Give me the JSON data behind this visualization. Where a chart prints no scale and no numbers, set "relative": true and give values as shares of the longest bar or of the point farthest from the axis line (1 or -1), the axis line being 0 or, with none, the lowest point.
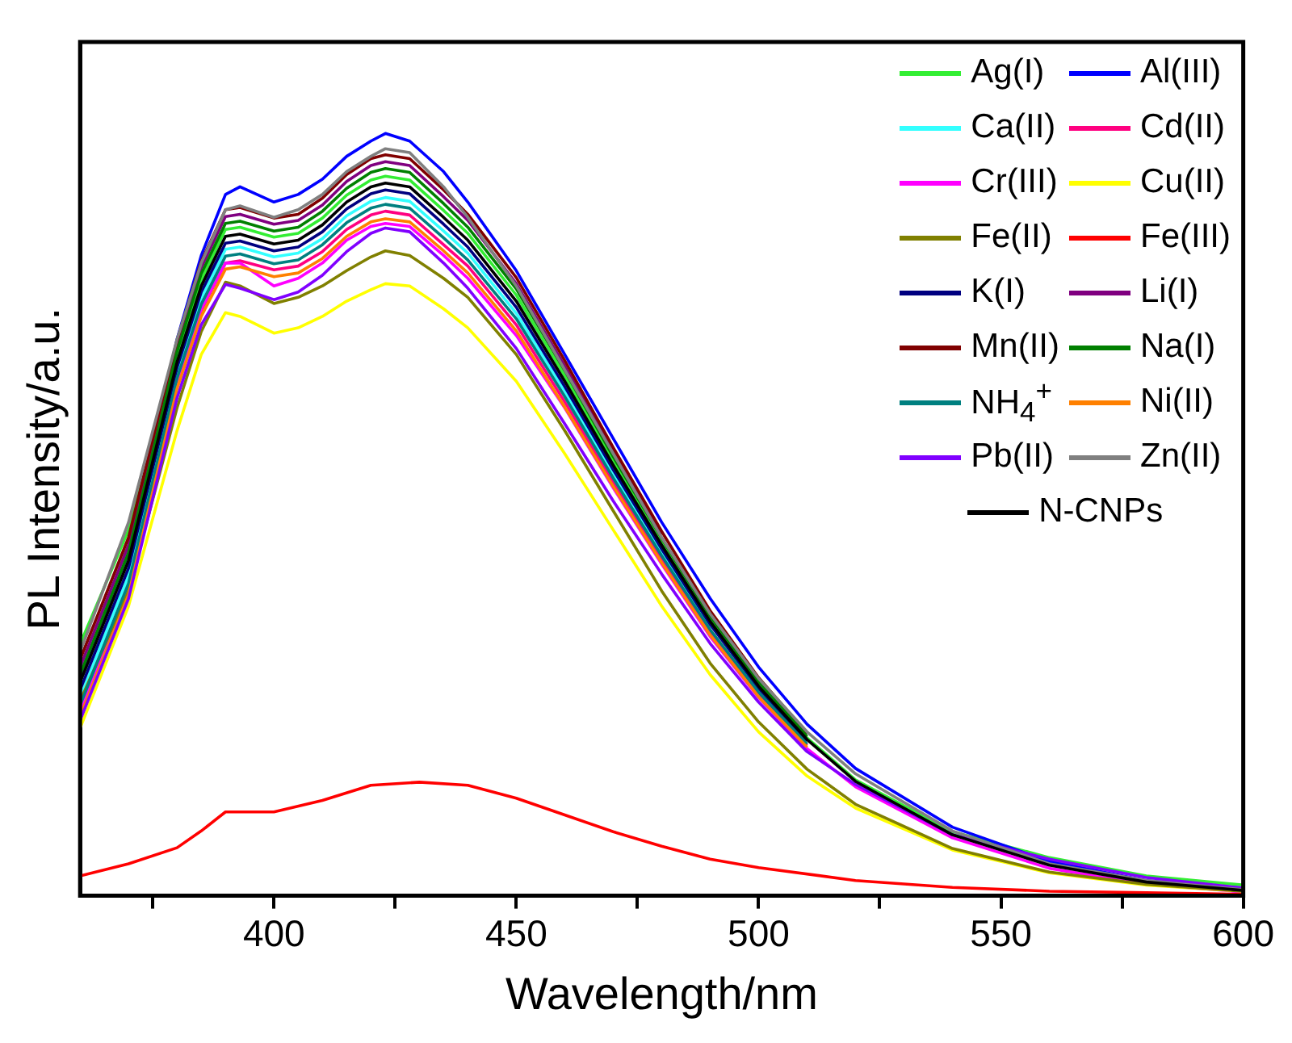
{
  "chart_data": {
    "type": "line",
    "xlabel": "Wavelength/nm",
    "ylabel": "PL Intensity/a.u.",
    "relative": true,
    "xlim": [
      360,
      600
    ],
    "xticks": [
      {
        "value": 375,
        "label": null
      },
      400,
      {
        "value": 425,
        "label": null
      },
      450,
      {
        "value": 475,
        "label": null
      },
      500,
      {
        "value": 525,
        "label": null
      },
      550,
      {
        "value": 575,
        "label": null
      },
      600
    ],
    "grid": false,
    "legend": "top right",
    "marker": "none",
    "line_style": "solid",
    "x": [
      360,
      370,
      380,
      385,
      390,
      393,
      400,
      405,
      410,
      415,
      420,
      423,
      428,
      435,
      440,
      450,
      460,
      470,
      480,
      490,
      500,
      510,
      520,
      540,
      560,
      580,
      600
    ],
    "series": [
      {
        "name": "Ag(I)",
        "color": "#33ee33",
        "values": [
          0.33,
          0.48,
          0.707,
          0.808,
          0.874,
          0.877,
          0.864,
          0.869,
          0.889,
          0.919,
          0.939,
          0.944,
          0.939,
          0.899,
          0.869,
          0.788,
          0.682,
          0.571,
          0.465,
          0.364,
          0.278,
          0.207,
          0.152,
          0.084,
          0.05,
          0.026,
          0.014
        ]
      },
      {
        "name": "Al(III)",
        "color": "#0000ff",
        "values": [
          0.29,
          0.45,
          0.73,
          0.84,
          0.92,
          0.93,
          0.91,
          0.92,
          0.94,
          0.97,
          0.99,
          1.0,
          0.99,
          0.95,
          0.91,
          0.82,
          0.71,
          0.6,
          0.49,
          0.39,
          0.3,
          0.225,
          0.167,
          0.09,
          0.045,
          0.02,
          0.01
        ]
      },
      {
        "name": "Ca(II)",
        "color": "#33ffff",
        "values": [
          0.26,
          0.42,
          0.686,
          0.784,
          0.848,
          0.851,
          0.838,
          0.843,
          0.862,
          0.892,
          0.911,
          0.916,
          0.911,
          0.872,
          0.843,
          0.764,
          0.662,
          0.554,
          0.451,
          0.353,
          null,
          null,
          null,
          null,
          null,
          null,
          null
        ]
      },
      {
        "name": "Cd(II)",
        "color": "#ff0080",
        "values": [
          0.24,
          0.4,
          0.672,
          0.768,
          0.83,
          0.833,
          0.821,
          0.826,
          0.845,
          0.874,
          0.893,
          0.898,
          0.893,
          0.854,
          0.826,
          0.749,
          0.648,
          0.542,
          0.442,
          0.346,
          0.264,
          0.197,
          null,
          null,
          null,
          null,
          null
        ]
      },
      {
        "name": "Cr(III)",
        "color": "#ff00ff",
        "values": [
          0.245,
          0.405,
          0.67,
          0.77,
          0.83,
          0.83,
          0.8,
          0.81,
          0.83,
          0.86,
          0.878,
          0.882,
          0.878,
          0.84,
          0.81,
          0.735,
          0.64,
          0.535,
          0.435,
          0.34,
          0.26,
          0.193,
          0.143,
          0.076,
          0.036,
          0.015,
          0.005
        ]
      },
      {
        "name": "Cu(II)",
        "color": "#ffff00",
        "values": [
          0.22,
          0.38,
          0.61,
          0.71,
          0.765,
          0.76,
          0.738,
          0.745,
          0.76,
          0.78,
          0.795,
          0.803,
          0.8,
          0.77,
          0.745,
          0.675,
          0.58,
          0.48,
          0.38,
          0.29,
          0.215,
          0.157,
          0.115,
          0.06,
          0.03,
          0.014,
          0.006
        ]
      },
      {
        "name": "Fe(II)",
        "color": "#808000",
        "values": [
          0.255,
          0.4,
          0.64,
          0.74,
          0.805,
          0.8,
          0.777,
          0.785,
          0.8,
          0.82,
          0.838,
          0.846,
          0.84,
          0.81,
          0.785,
          0.71,
          0.61,
          0.505,
          0.4,
          0.305,
          0.228,
          0.166,
          0.12,
          0.062,
          0.031,
          0.015,
          0.006
        ]
      },
      {
        "name": "Fe(III)",
        "color": "#ff0000",
        "x": [
          360,
          370,
          380,
          385,
          390,
          400,
          410,
          420,
          430,
          440,
          450,
          460,
          470,
          480,
          490,
          500,
          520,
          540,
          560,
          580,
          600
        ],
        "values": [
          0.026,
          0.042,
          0.063,
          0.085,
          0.11,
          0.11,
          0.125,
          0.145,
          0.149,
          0.145,
          0.128,
          0.106,
          0.084,
          0.065,
          0.048,
          0.037,
          0.02,
          0.011,
          0.006,
          0.004,
          0.002
        ]
      },
      {
        "name": "K(I)",
        "color": "#000080",
        "values": [
          0.27,
          0.43,
          0.693,
          0.792,
          0.856,
          0.859,
          0.846,
          0.851,
          0.871,
          0.901,
          0.921,
          0.926,
          0.921,
          0.881,
          0.851,
          0.772,
          0.668,
          0.559,
          0.455,
          0.356,
          0.272,
          0.203,
          null,
          null,
          null,
          null,
          null
        ]
      },
      {
        "name": "Li(I)",
        "color": "#800080",
        "values": [
          0.3,
          0.46,
          0.721,
          0.824,
          0.891,
          0.894,
          0.881,
          0.886,
          0.906,
          0.937,
          0.958,
          0.963,
          0.958,
          0.917,
          0.886,
          0.803,
          0.695,
          0.582,
          0.474,
          null,
          null,
          null,
          null,
          null,
          null,
          null,
          null
        ]
      },
      {
        "name": "Mn(II)",
        "color": "#800000",
        "values": [
          0.31,
          0.47,
          0.728,
          0.832,
          0.9,
          0.903,
          0.889,
          0.894,
          0.915,
          0.946,
          0.967,
          0.972,
          0.967,
          0.926,
          0.894,
          0.811,
          0.702,
          0.588,
          0.478,
          0.374,
          0.286,
          0.213,
          null,
          null,
          null,
          null,
          null
        ]
      },
      {
        "name": "Na(I)",
        "color": "#008000",
        "values": [
          0.29,
          0.45,
          0.714,
          0.816,
          0.882,
          0.885,
          0.872,
          0.877,
          0.898,
          0.928,
          0.949,
          0.954,
          0.949,
          0.908,
          0.877,
          0.796,
          0.689,
          0.576,
          0.469,
          0.367,
          0.281,
          0.209,
          null,
          null,
          null,
          null,
          null
        ]
      },
      {
        "name": "NH$_{4}$$^{+}$",
        "color": "#008080",
        "values": [
          0.25,
          0.41,
          0.679,
          0.776,
          0.839,
          0.842,
          0.829,
          0.834,
          0.854,
          0.883,
          0.902,
          0.907,
          0.902,
          0.863,
          0.834,
          0.757,
          0.655,
          0.548,
          0.446,
          0.349,
          0.267,
          0.199,
          null,
          null,
          null,
          null,
          null
        ]
      },
      {
        "name": "Ni(II)",
        "color": "#ff8000",
        "values": [
          0.235,
          0.395,
          0.665,
          0.76,
          0.822,
          0.825,
          0.812,
          0.817,
          0.836,
          0.865,
          0.884,
          0.888,
          0.884,
          0.846,
          0.817,
          0.741,
          0.641,
          0.537,
          0.437,
          0.342,
          0.261,
          0.195,
          null,
          null,
          null,
          null,
          null
        ]
      },
      {
        "name": "Pb(II)",
        "color": "#8000ff",
        "values": [
          0.23,
          0.39,
          0.653,
          0.749,
          0.802,
          0.797,
          0.782,
          0.792,
          0.814,
          0.845,
          0.869,
          0.876,
          0.871,
          0.83,
          0.797,
          0.718,
          0.619,
          0.518,
          0.422,
          0.331,
          0.254,
          0.189,
          0.146,
          0.08,
          0.048,
          0.024,
          0.01
        ]
      },
      {
        "name": "Zn(II)",
        "color": "#808080",
        "values": [
          0.32,
          0.49,
          0.73,
          0.83,
          0.9,
          0.905,
          0.89,
          0.9,
          0.92,
          0.95,
          0.97,
          0.98,
          0.975,
          0.93,
          0.89,
          0.8,
          0.69,
          0.58,
          0.47,
          0.37,
          0.285,
          0.215,
          0.16,
          0.085,
          0.042,
          0.02,
          0.008
        ]
      },
      {
        "name": "N-CNPs",
        "color": "#000000",
        "values": [
          0.28,
          0.44,
          0.7,
          0.8,
          0.865,
          0.868,
          0.855,
          0.86,
          0.88,
          0.91,
          0.93,
          0.935,
          0.93,
          0.89,
          0.86,
          0.78,
          0.675,
          0.565,
          0.46,
          0.36,
          0.275,
          0.205,
          0.15,
          0.08,
          0.04,
          0.018,
          0.007
        ]
      }
    ]
  }
}
